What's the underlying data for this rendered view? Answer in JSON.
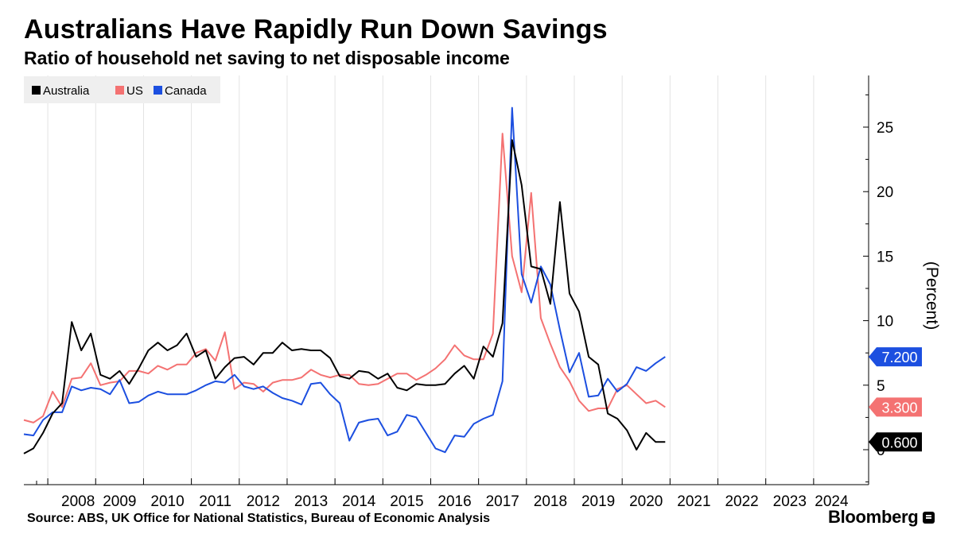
{
  "header": {
    "title": "Australians Have Rapidly Run Down Savings",
    "subtitle": "Ratio of household net saving to net disposable income"
  },
  "footer": {
    "source": "Source: ABS, UK Office for National Statistics, Bureau of Economic Analysis",
    "brand": "Bloomberg"
  },
  "chart_data": {
    "type": "line",
    "ylabel": "(Percent)",
    "ylim": [
      -3,
      29
    ],
    "y_ticks": [
      "0",
      "5",
      "10",
      "15",
      "20",
      "25"
    ],
    "x_range": [
      2007.5,
      2024.75
    ],
    "x_ticks": [
      "2008",
      "2009",
      "2010",
      "2011",
      "2012",
      "2013",
      "2014",
      "2015",
      "2016",
      "2017",
      "2018",
      "2019",
      "2020",
      "2021",
      "2022",
      "2023",
      "2024"
    ],
    "grid": true,
    "legend_position": "top-left",
    "series": [
      {
        "name": "Australia",
        "color": "#000000",
        "end_label": "0.600",
        "points": [
          [
            2007.5,
            -0.3
          ],
          [
            2007.7,
            0.1
          ],
          [
            2007.9,
            1.3
          ],
          [
            2008.1,
            2.8
          ],
          [
            2008.3,
            3.6
          ],
          [
            2008.5,
            9.9
          ],
          [
            2008.7,
            7.7
          ],
          [
            2008.9,
            9.0
          ],
          [
            2009.1,
            5.8
          ],
          [
            2009.3,
            5.5
          ],
          [
            2009.5,
            6.1
          ],
          [
            2009.7,
            5.1
          ],
          [
            2009.9,
            6.3
          ],
          [
            2010.1,
            7.7
          ],
          [
            2010.3,
            8.3
          ],
          [
            2010.5,
            7.7
          ],
          [
            2010.7,
            8.1
          ],
          [
            2010.9,
            9.0
          ],
          [
            2011.1,
            7.2
          ],
          [
            2011.3,
            7.7
          ],
          [
            2011.5,
            5.5
          ],
          [
            2011.7,
            6.4
          ],
          [
            2011.9,
            7.1
          ],
          [
            2012.1,
            7.2
          ],
          [
            2012.3,
            6.6
          ],
          [
            2012.5,
            7.5
          ],
          [
            2012.7,
            7.5
          ],
          [
            2012.9,
            8.3
          ],
          [
            2013.1,
            7.7
          ],
          [
            2013.3,
            7.8
          ],
          [
            2013.5,
            7.7
          ],
          [
            2013.7,
            7.7
          ],
          [
            2013.9,
            7.1
          ],
          [
            2014.1,
            5.7
          ],
          [
            2014.3,
            5.5
          ],
          [
            2014.5,
            6.1
          ],
          [
            2014.7,
            6.0
          ],
          [
            2014.9,
            5.5
          ],
          [
            2015.1,
            5.9
          ],
          [
            2015.3,
            4.8
          ],
          [
            2015.5,
            4.6
          ],
          [
            2015.7,
            5.1
          ],
          [
            2015.9,
            5.0
          ],
          [
            2016.1,
            5.0
          ],
          [
            2016.3,
            5.1
          ],
          [
            2016.5,
            5.9
          ],
          [
            2016.7,
            6.5
          ],
          [
            2016.9,
            5.5
          ],
          [
            2017.1,
            8.0
          ],
          [
            2017.3,
            7.2
          ],
          [
            2017.5,
            9.8
          ],
          [
            2017.7,
            24.0
          ],
          [
            2017.9,
            20.5
          ],
          [
            2018.1,
            14.2
          ],
          [
            2018.3,
            14.0
          ],
          [
            2018.5,
            11.3
          ],
          [
            2018.7,
            19.2
          ],
          [
            2018.9,
            12.1
          ],
          [
            2019.1,
            10.7
          ],
          [
            2019.3,
            7.2
          ],
          [
            2019.5,
            6.6
          ],
          [
            2019.7,
            2.8
          ],
          [
            2019.9,
            2.4
          ],
          [
            2020.1,
            1.5
          ],
          [
            2020.3,
            0.0
          ],
          [
            2020.5,
            1.3
          ],
          [
            2020.7,
            0.6
          ],
          [
            2020.9,
            0.6
          ]
        ]
      },
      {
        "name": "US",
        "color": "#f47272",
        "end_label": "3.300",
        "points": [
          [
            2007.5,
            2.3
          ],
          [
            2007.7,
            2.1
          ],
          [
            2007.9,
            2.6
          ],
          [
            2008.1,
            4.5
          ],
          [
            2008.3,
            3.3
          ],
          [
            2008.5,
            5.5
          ],
          [
            2008.7,
            5.6
          ],
          [
            2008.9,
            6.7
          ],
          [
            2009.1,
            5.0
          ],
          [
            2009.3,
            5.2
          ],
          [
            2009.5,
            5.3
          ],
          [
            2009.7,
            6.1
          ],
          [
            2009.9,
            6.1
          ],
          [
            2010.1,
            5.9
          ],
          [
            2010.3,
            6.5
          ],
          [
            2010.5,
            6.2
          ],
          [
            2010.7,
            6.6
          ],
          [
            2010.9,
            6.6
          ],
          [
            2011.1,
            7.5
          ],
          [
            2011.3,
            7.8
          ],
          [
            2011.5,
            6.9
          ],
          [
            2011.7,
            9.1
          ],
          [
            2011.9,
            4.7
          ],
          [
            2012.1,
            5.2
          ],
          [
            2012.3,
            5.1
          ],
          [
            2012.5,
            4.5
          ],
          [
            2012.7,
            5.2
          ],
          [
            2012.9,
            5.4
          ],
          [
            2013.1,
            5.4
          ],
          [
            2013.3,
            5.6
          ],
          [
            2013.5,
            6.2
          ],
          [
            2013.7,
            5.8
          ],
          [
            2013.9,
            5.6
          ],
          [
            2014.1,
            5.8
          ],
          [
            2014.3,
            5.8
          ],
          [
            2014.5,
            5.1
          ],
          [
            2014.7,
            5.0
          ],
          [
            2014.9,
            5.1
          ],
          [
            2015.1,
            5.5
          ],
          [
            2015.3,
            5.9
          ],
          [
            2015.5,
            5.9
          ],
          [
            2015.7,
            5.4
          ],
          [
            2015.9,
            5.8
          ],
          [
            2016.1,
            6.3
          ],
          [
            2016.3,
            7.0
          ],
          [
            2016.5,
            8.1
          ],
          [
            2016.7,
            7.3
          ],
          [
            2016.9,
            7.0
          ],
          [
            2017.1,
            7.0
          ],
          [
            2017.3,
            9.0
          ],
          [
            2017.5,
            24.5
          ],
          [
            2017.7,
            15.0
          ],
          [
            2017.9,
            12.2
          ],
          [
            2018.1,
            19.9
          ],
          [
            2018.3,
            10.2
          ],
          [
            2018.5,
            8.2
          ],
          [
            2018.7,
            6.4
          ],
          [
            2018.9,
            5.3
          ],
          [
            2019.1,
            3.8
          ],
          [
            2019.3,
            3.0
          ],
          [
            2019.5,
            3.2
          ],
          [
            2019.7,
            3.2
          ],
          [
            2019.9,
            4.7
          ],
          [
            2020.1,
            5.0
          ],
          [
            2020.3,
            4.3
          ],
          [
            2020.5,
            3.6
          ],
          [
            2020.7,
            3.8
          ],
          [
            2020.9,
            3.3
          ]
        ]
      },
      {
        "name": "Canada",
        "color": "#1c4fe0",
        "end_label": "7.200",
        "points": [
          [
            2007.5,
            1.2
          ],
          [
            2007.7,
            1.1
          ],
          [
            2007.9,
            2.3
          ],
          [
            2008.1,
            2.9
          ],
          [
            2008.3,
            2.9
          ],
          [
            2008.5,
            4.9
          ],
          [
            2008.7,
            4.6
          ],
          [
            2008.9,
            4.8
          ],
          [
            2009.1,
            4.7
          ],
          [
            2009.3,
            4.3
          ],
          [
            2009.5,
            5.4
          ],
          [
            2009.7,
            3.6
          ],
          [
            2009.9,
            3.7
          ],
          [
            2010.1,
            4.2
          ],
          [
            2010.3,
            4.5
          ],
          [
            2010.5,
            4.3
          ],
          [
            2010.7,
            4.3
          ],
          [
            2010.9,
            4.3
          ],
          [
            2011.1,
            4.6
          ],
          [
            2011.3,
            5.0
          ],
          [
            2011.5,
            5.3
          ],
          [
            2011.7,
            5.2
          ],
          [
            2011.9,
            5.8
          ],
          [
            2012.1,
            4.9
          ],
          [
            2012.3,
            4.7
          ],
          [
            2012.5,
            4.9
          ],
          [
            2012.7,
            4.4
          ],
          [
            2012.9,
            4.0
          ],
          [
            2013.1,
            3.8
          ],
          [
            2013.3,
            3.5
          ],
          [
            2013.5,
            5.1
          ],
          [
            2013.7,
            5.2
          ],
          [
            2013.9,
            4.3
          ],
          [
            2014.1,
            3.6
          ],
          [
            2014.3,
            0.7
          ],
          [
            2014.5,
            2.1
          ],
          [
            2014.7,
            2.3
          ],
          [
            2014.9,
            2.4
          ],
          [
            2015.1,
            1.1
          ],
          [
            2015.3,
            1.4
          ],
          [
            2015.5,
            2.7
          ],
          [
            2015.7,
            2.5
          ],
          [
            2015.9,
            1.3
          ],
          [
            2016.1,
            0.1
          ],
          [
            2016.3,
            -0.2
          ],
          [
            2016.5,
            1.1
          ],
          [
            2016.7,
            1.0
          ],
          [
            2016.9,
            2.0
          ],
          [
            2017.1,
            2.4
          ],
          [
            2017.3,
            2.7
          ],
          [
            2017.5,
            5.3
          ],
          [
            2017.7,
            26.5
          ],
          [
            2017.9,
            13.6
          ],
          [
            2018.1,
            11.4
          ],
          [
            2018.3,
            14.2
          ],
          [
            2018.5,
            12.8
          ],
          [
            2018.7,
            9.3
          ],
          [
            2018.9,
            6.0
          ],
          [
            2019.1,
            7.5
          ],
          [
            2019.3,
            4.1
          ],
          [
            2019.5,
            4.2
          ],
          [
            2019.7,
            5.5
          ],
          [
            2019.9,
            4.5
          ],
          [
            2020.1,
            5.1
          ],
          [
            2020.3,
            6.4
          ],
          [
            2020.5,
            6.1
          ],
          [
            2020.7,
            6.7
          ],
          [
            2020.9,
            7.2
          ]
        ]
      }
    ]
  }
}
